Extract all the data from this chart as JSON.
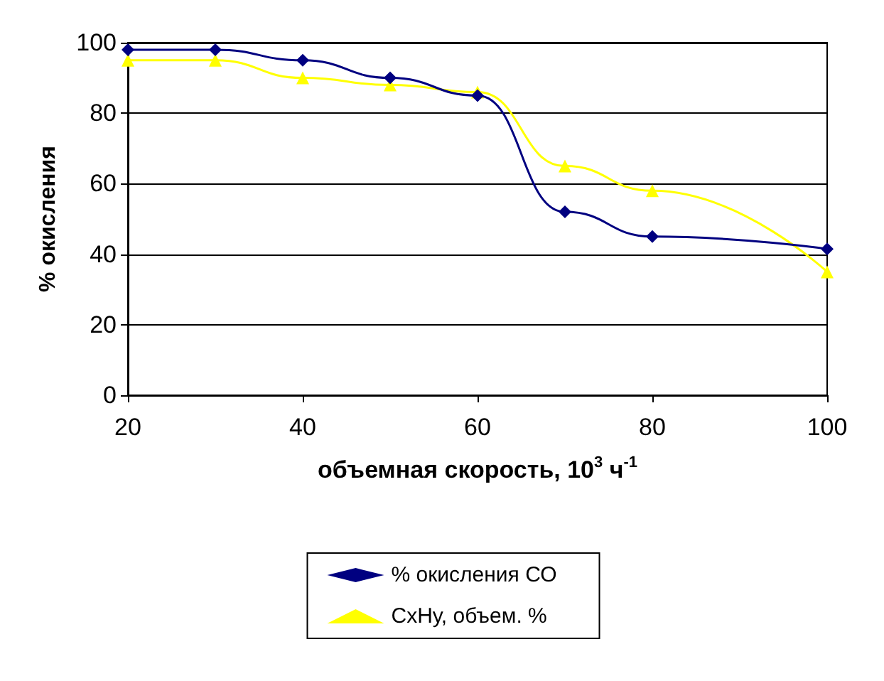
{
  "chart_data": {
    "type": "line",
    "xlabel": "объемная скорость, 10$^{3}$ ч$^{-1}$",
    "ylabel": "% окисления",
    "x": [
      20,
      30,
      40,
      50,
      60,
      70,
      80,
      100
    ],
    "series": [
      {
        "name": "% окисления СО",
        "color": "#000080",
        "marker": "diamond",
        "values": [
          98,
          98,
          95,
          90,
          85,
          52,
          45,
          41.5
        ]
      },
      {
        "name": "СхНу, объем. %",
        "color": "#ffff00",
        "marker": "triangle",
        "values": [
          95,
          95,
          90,
          88,
          86,
          65,
          58,
          35
        ]
      }
    ],
    "xlim": [
      20,
      100
    ],
    "xticks": [
      20,
      40,
      60,
      80,
      100
    ],
    "ylim": [
      0,
      100
    ],
    "yticks": [
      0,
      20,
      40,
      60,
      80,
      100
    ],
    "grid": "y",
    "legend": "bottom"
  }
}
